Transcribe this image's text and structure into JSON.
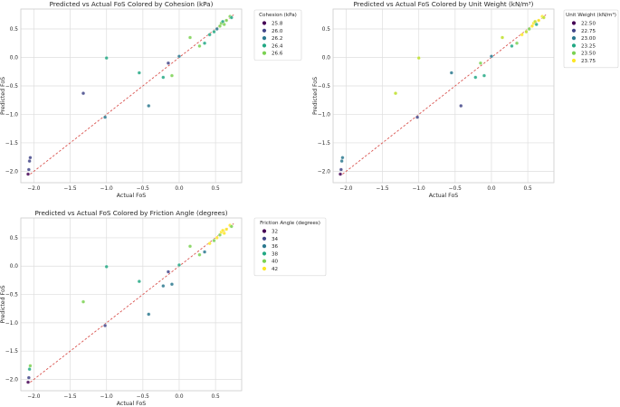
{
  "chart_data": [
    {
      "type": "scatter",
      "title": "Predicted vs Actual FoS Colored by Cohesion (kPa)",
      "xlabel": "Actual FoS",
      "ylabel": "Predicted FoS",
      "xlim": [
        -2.18,
        0.86
      ],
      "ylim": [
        -2.2,
        0.85
      ],
      "xticks": [
        -2.0,
        -1.5,
        -1.0,
        -0.5,
        0.0,
        0.5
      ],
      "xtick_labels": [
        "−2.0",
        "−1.5",
        "−1.0",
        "−0.5",
        "0.0",
        "0.5"
      ],
      "yticks": [
        -2.0,
        -1.5,
        -1.0,
        -0.5,
        0.0,
        0.5
      ],
      "ytick_labels": [
        "−2.0",
        "−1.5",
        "−1.0",
        "−0.5",
        "0.0",
        "0.5"
      ],
      "grid": true,
      "reference_line": {
        "style": "dashed",
        "color": "#d9534f"
      },
      "legend": {
        "title": "Cohesion (kPa)",
        "placement": "outside-right",
        "entries": [
          {
            "label": "25.8",
            "color": "#440154"
          },
          {
            "label": "26.0",
            "color": "#414487"
          },
          {
            "label": "26.2",
            "color": "#2a788e"
          },
          {
            "label": "26.4",
            "color": "#22a884"
          },
          {
            "label": "26.6",
            "color": "#7ad151"
          }
        ]
      },
      "points": [
        {
          "x": -2.08,
          "y": -2.05,
          "c": "#440154"
        },
        {
          "x": -2.07,
          "y": -1.97,
          "c": "#414487"
        },
        {
          "x": -2.06,
          "y": -1.82,
          "c": "#414487"
        },
        {
          "x": -2.05,
          "y": -1.76,
          "c": "#414487"
        },
        {
          "x": -1.32,
          "y": -0.63,
          "c": "#414487"
        },
        {
          "x": -1.02,
          "y": -1.05,
          "c": "#2a788e"
        },
        {
          "x": -1.0,
          "y": -0.01,
          "c": "#22a884"
        },
        {
          "x": -0.55,
          "y": -0.27,
          "c": "#22a884"
        },
        {
          "x": -0.42,
          "y": -0.85,
          "c": "#2a788e"
        },
        {
          "x": -0.22,
          "y": -0.35,
          "c": "#22a884"
        },
        {
          "x": -0.15,
          "y": -0.1,
          "c": "#414487"
        },
        {
          "x": -0.1,
          "y": -0.32,
          "c": "#7ad151"
        },
        {
          "x": 0.0,
          "y": 0.02,
          "c": "#2a788e"
        },
        {
          "x": 0.15,
          "y": 0.35,
          "c": "#7ad151"
        },
        {
          "x": 0.28,
          "y": 0.2,
          "c": "#7ad151"
        },
        {
          "x": 0.35,
          "y": 0.25,
          "c": "#22a884"
        },
        {
          "x": 0.42,
          "y": 0.4,
          "c": "#22a884"
        },
        {
          "x": 0.48,
          "y": 0.45,
          "c": "#22a884"
        },
        {
          "x": 0.52,
          "y": 0.5,
          "c": "#2a788e"
        },
        {
          "x": 0.56,
          "y": 0.55,
          "c": "#7ad151"
        },
        {
          "x": 0.58,
          "y": 0.6,
          "c": "#7ad151"
        },
        {
          "x": 0.6,
          "y": 0.63,
          "c": "#22a884"
        },
        {
          "x": 0.62,
          "y": 0.58,
          "c": "#7ad151"
        },
        {
          "x": 0.65,
          "y": 0.65,
          "c": "#7ad151"
        },
        {
          "x": 0.7,
          "y": 0.72,
          "c": "#7ad151"
        },
        {
          "x": 0.72,
          "y": 0.7,
          "c": "#22a884"
        }
      ]
    },
    {
      "type": "scatter",
      "title": "Predicted vs Actual FoS Colored by Unit Weight (kN/m³)",
      "xlabel": "Actual FoS",
      "ylabel": "Predicted FoS",
      "xlim": [
        -2.18,
        0.86
      ],
      "ylim": [
        -2.2,
        0.85
      ],
      "xticks": [
        -2.0,
        -1.5,
        -1.0,
        -0.5,
        0.0,
        0.5
      ],
      "xtick_labels": [
        "−2.0",
        "−1.5",
        "−1.0",
        "−0.5",
        "0.0",
        "0.5"
      ],
      "yticks": [
        -2.0,
        -1.5,
        -1.0,
        -0.5,
        0.0,
        0.5
      ],
      "ytick_labels": [
        "−2.0",
        "−1.5",
        "−1.0",
        "−0.5",
        "0.0",
        "0.5"
      ],
      "grid": true,
      "reference_line": {
        "style": "dashed",
        "color": "#d9534f"
      },
      "legend": {
        "title": "Unit Weight (kN/m³)",
        "placement": "outside-right",
        "entries": [
          {
            "label": "22.50",
            "color": "#440154"
          },
          {
            "label": "22.75",
            "color": "#414487"
          },
          {
            "label": "23.00",
            "color": "#2a788e"
          },
          {
            "label": "23.25",
            "color": "#22a884"
          },
          {
            "label": "23.50",
            "color": "#7ad151"
          },
          {
            "label": "23.75",
            "color": "#fde725"
          }
        ]
      },
      "points": [
        {
          "x": -2.08,
          "y": -2.05,
          "c": "#440154"
        },
        {
          "x": -2.07,
          "y": -1.97,
          "c": "#414487"
        },
        {
          "x": -2.06,
          "y": -1.82,
          "c": "#2a788e"
        },
        {
          "x": -2.05,
          "y": -1.76,
          "c": "#2a788e"
        },
        {
          "x": -1.32,
          "y": -0.63,
          "c": "#bddf26"
        },
        {
          "x": -1.02,
          "y": -1.05,
          "c": "#414487"
        },
        {
          "x": -1.0,
          "y": -0.01,
          "c": "#bddf26"
        },
        {
          "x": -0.55,
          "y": -0.27,
          "c": "#2a788e"
        },
        {
          "x": -0.42,
          "y": -0.85,
          "c": "#414487"
        },
        {
          "x": -0.22,
          "y": -0.35,
          "c": "#22a884"
        },
        {
          "x": -0.15,
          "y": -0.1,
          "c": "#7ad151"
        },
        {
          "x": -0.1,
          "y": -0.32,
          "c": "#22a884"
        },
        {
          "x": 0.0,
          "y": 0.02,
          "c": "#2a788e"
        },
        {
          "x": 0.15,
          "y": 0.35,
          "c": "#bddf26"
        },
        {
          "x": 0.28,
          "y": 0.2,
          "c": "#22a884"
        },
        {
          "x": 0.35,
          "y": 0.25,
          "c": "#7ad151"
        },
        {
          "x": 0.42,
          "y": 0.4,
          "c": "#fde725"
        },
        {
          "x": 0.48,
          "y": 0.45,
          "c": "#bddf26"
        },
        {
          "x": 0.52,
          "y": 0.5,
          "c": "#7ad151"
        },
        {
          "x": 0.56,
          "y": 0.55,
          "c": "#fde725"
        },
        {
          "x": 0.58,
          "y": 0.6,
          "c": "#fde725"
        },
        {
          "x": 0.6,
          "y": 0.63,
          "c": "#bddf26"
        },
        {
          "x": 0.62,
          "y": 0.58,
          "c": "#22a884"
        },
        {
          "x": 0.65,
          "y": 0.65,
          "c": "#fde725"
        },
        {
          "x": 0.7,
          "y": 0.72,
          "c": "#fde725"
        },
        {
          "x": 0.72,
          "y": 0.7,
          "c": "#bddf26"
        }
      ]
    },
    {
      "type": "scatter",
      "title": "Predicted vs Actual FoS Colored by Friction Angle (degrees)",
      "xlabel": "Actual FoS",
      "ylabel": "Predicted FoS",
      "xlim": [
        -2.18,
        0.86
      ],
      "ylim": [
        -2.2,
        0.85
      ],
      "xticks": [
        -2.0,
        -1.5,
        -1.0,
        -0.5,
        0.0,
        0.5
      ],
      "xtick_labels": [
        "−2.0",
        "−1.5",
        "−1.0",
        "−0.5",
        "0.0",
        "0.5"
      ],
      "yticks": [
        -2.0,
        -1.5,
        -1.0,
        -0.5,
        0.0,
        0.5
      ],
      "ytick_labels": [
        "−2.0",
        "−1.5",
        "−1.0",
        "−0.5",
        "0.0",
        "0.5"
      ],
      "grid": true,
      "reference_line": {
        "style": "dashed",
        "color": "#d9534f"
      },
      "legend": {
        "title": "Friction Angle (degrees)",
        "placement": "outside-right",
        "entries": [
          {
            "label": "32",
            "color": "#440154"
          },
          {
            "label": "34",
            "color": "#414487"
          },
          {
            "label": "36",
            "color": "#2a788e"
          },
          {
            "label": "38",
            "color": "#22a884"
          },
          {
            "label": "40",
            "color": "#7ad151"
          },
          {
            "label": "42",
            "color": "#fde725"
          }
        ]
      },
      "points": [
        {
          "x": -2.08,
          "y": -2.05,
          "c": "#440154"
        },
        {
          "x": -2.07,
          "y": -1.97,
          "c": "#414487"
        },
        {
          "x": -2.06,
          "y": -1.82,
          "c": "#22a884"
        },
        {
          "x": -2.05,
          "y": -1.76,
          "c": "#7ad151"
        },
        {
          "x": -1.32,
          "y": -0.63,
          "c": "#7ad151"
        },
        {
          "x": -1.02,
          "y": -1.05,
          "c": "#414487"
        },
        {
          "x": -1.0,
          "y": -0.01,
          "c": "#22a884"
        },
        {
          "x": -0.55,
          "y": -0.27,
          "c": "#22a884"
        },
        {
          "x": -0.42,
          "y": -0.85,
          "c": "#2a788e"
        },
        {
          "x": -0.22,
          "y": -0.35,
          "c": "#2a788e"
        },
        {
          "x": -0.15,
          "y": -0.1,
          "c": "#414487"
        },
        {
          "x": -0.1,
          "y": -0.32,
          "c": "#2a788e"
        },
        {
          "x": 0.0,
          "y": 0.02,
          "c": "#22a884"
        },
        {
          "x": 0.15,
          "y": 0.35,
          "c": "#7ad151"
        },
        {
          "x": 0.28,
          "y": 0.2,
          "c": "#7ad151"
        },
        {
          "x": 0.35,
          "y": 0.25,
          "c": "#2a788e"
        },
        {
          "x": 0.42,
          "y": 0.4,
          "c": "#fde725"
        },
        {
          "x": 0.48,
          "y": 0.45,
          "c": "#7ad151"
        },
        {
          "x": 0.52,
          "y": 0.5,
          "c": "#fde725"
        },
        {
          "x": 0.56,
          "y": 0.55,
          "c": "#7ad151"
        },
        {
          "x": 0.58,
          "y": 0.6,
          "c": "#fde725"
        },
        {
          "x": 0.6,
          "y": 0.63,
          "c": "#fde725"
        },
        {
          "x": 0.62,
          "y": 0.58,
          "c": "#fde725"
        },
        {
          "x": 0.65,
          "y": 0.65,
          "c": "#fde725"
        },
        {
          "x": 0.7,
          "y": 0.72,
          "c": "#fde725"
        },
        {
          "x": 0.72,
          "y": 0.7,
          "c": "#7ad151"
        }
      ]
    }
  ]
}
